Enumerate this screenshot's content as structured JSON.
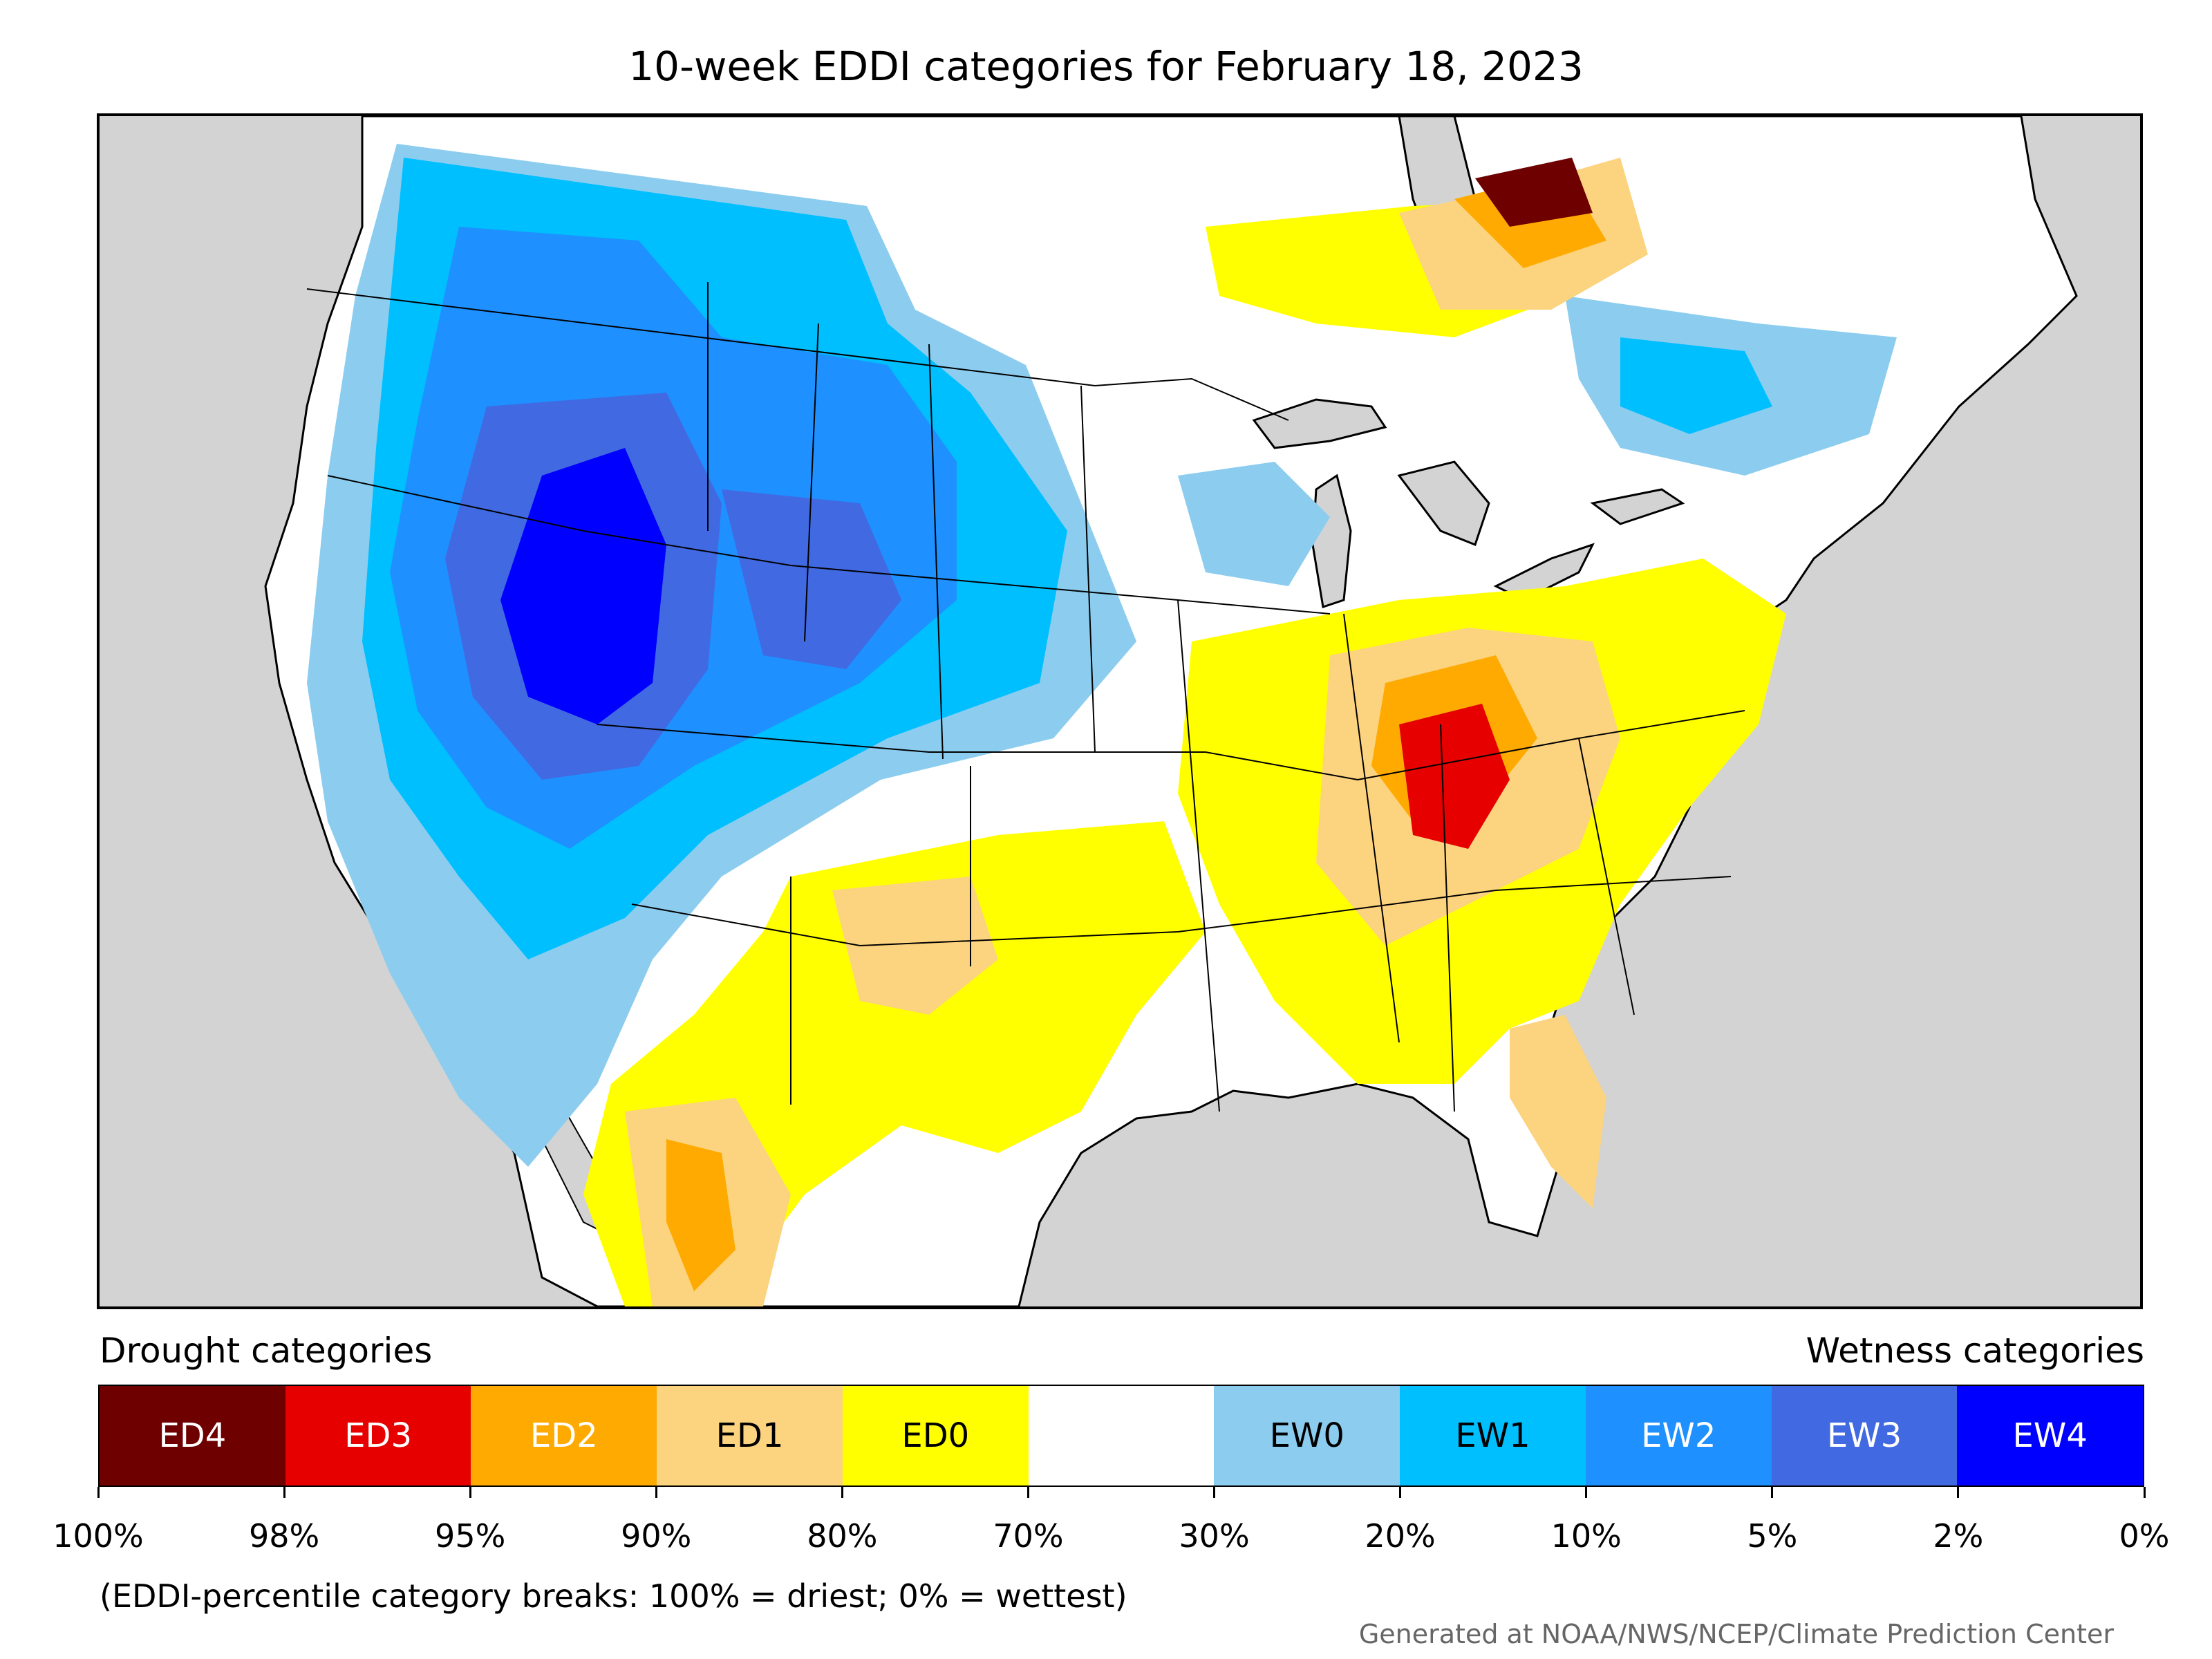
{
  "title": "10-week EDDI categories for February 18, 2023",
  "legend": {
    "drought_heading": "Drought categories",
    "wetness_heading": "Wetness categories",
    "categories": [
      {
        "label": "ED4",
        "color": "#6e0000",
        "text_color": "#ffffff"
      },
      {
        "label": "ED3",
        "color": "#e60000",
        "text_color": "#ffffff"
      },
      {
        "label": "ED2",
        "color": "#ffaa00",
        "text_color": "#ffffff"
      },
      {
        "label": "ED1",
        "color": "#fcd37f",
        "text_color": "#000000"
      },
      {
        "label": "ED0",
        "color": "#ffff00",
        "text_color": "#000000"
      },
      {
        "label": "",
        "color": "#ffffff",
        "text_color": "#000000"
      },
      {
        "label": "EW0",
        "color": "#8ccdef",
        "text_color": "#000000"
      },
      {
        "label": "EW1",
        "color": "#00bfff",
        "text_color": "#000000"
      },
      {
        "label": "EW2",
        "color": "#1e90ff",
        "text_color": "#ffffff"
      },
      {
        "label": "EW3",
        "color": "#4169e1",
        "text_color": "#ffffff"
      },
      {
        "label": "EW4",
        "color": "#0000ff",
        "text_color": "#ffffff"
      }
    ],
    "breaks": [
      "100%",
      "98%",
      "95%",
      "90%",
      "80%",
      "70%",
      "30%",
      "20%",
      "10%",
      "5%",
      "2%",
      "0%"
    ],
    "note": "(EDDI-percentile category breaks: 100% = driest; 0% = wettest)"
  },
  "credit": "Generated at NOAA/NWS/NCEP/Climate Prediction Center",
  "map": {
    "background_color": "#d3d3d3",
    "land_color": "#ffffff"
  }
}
